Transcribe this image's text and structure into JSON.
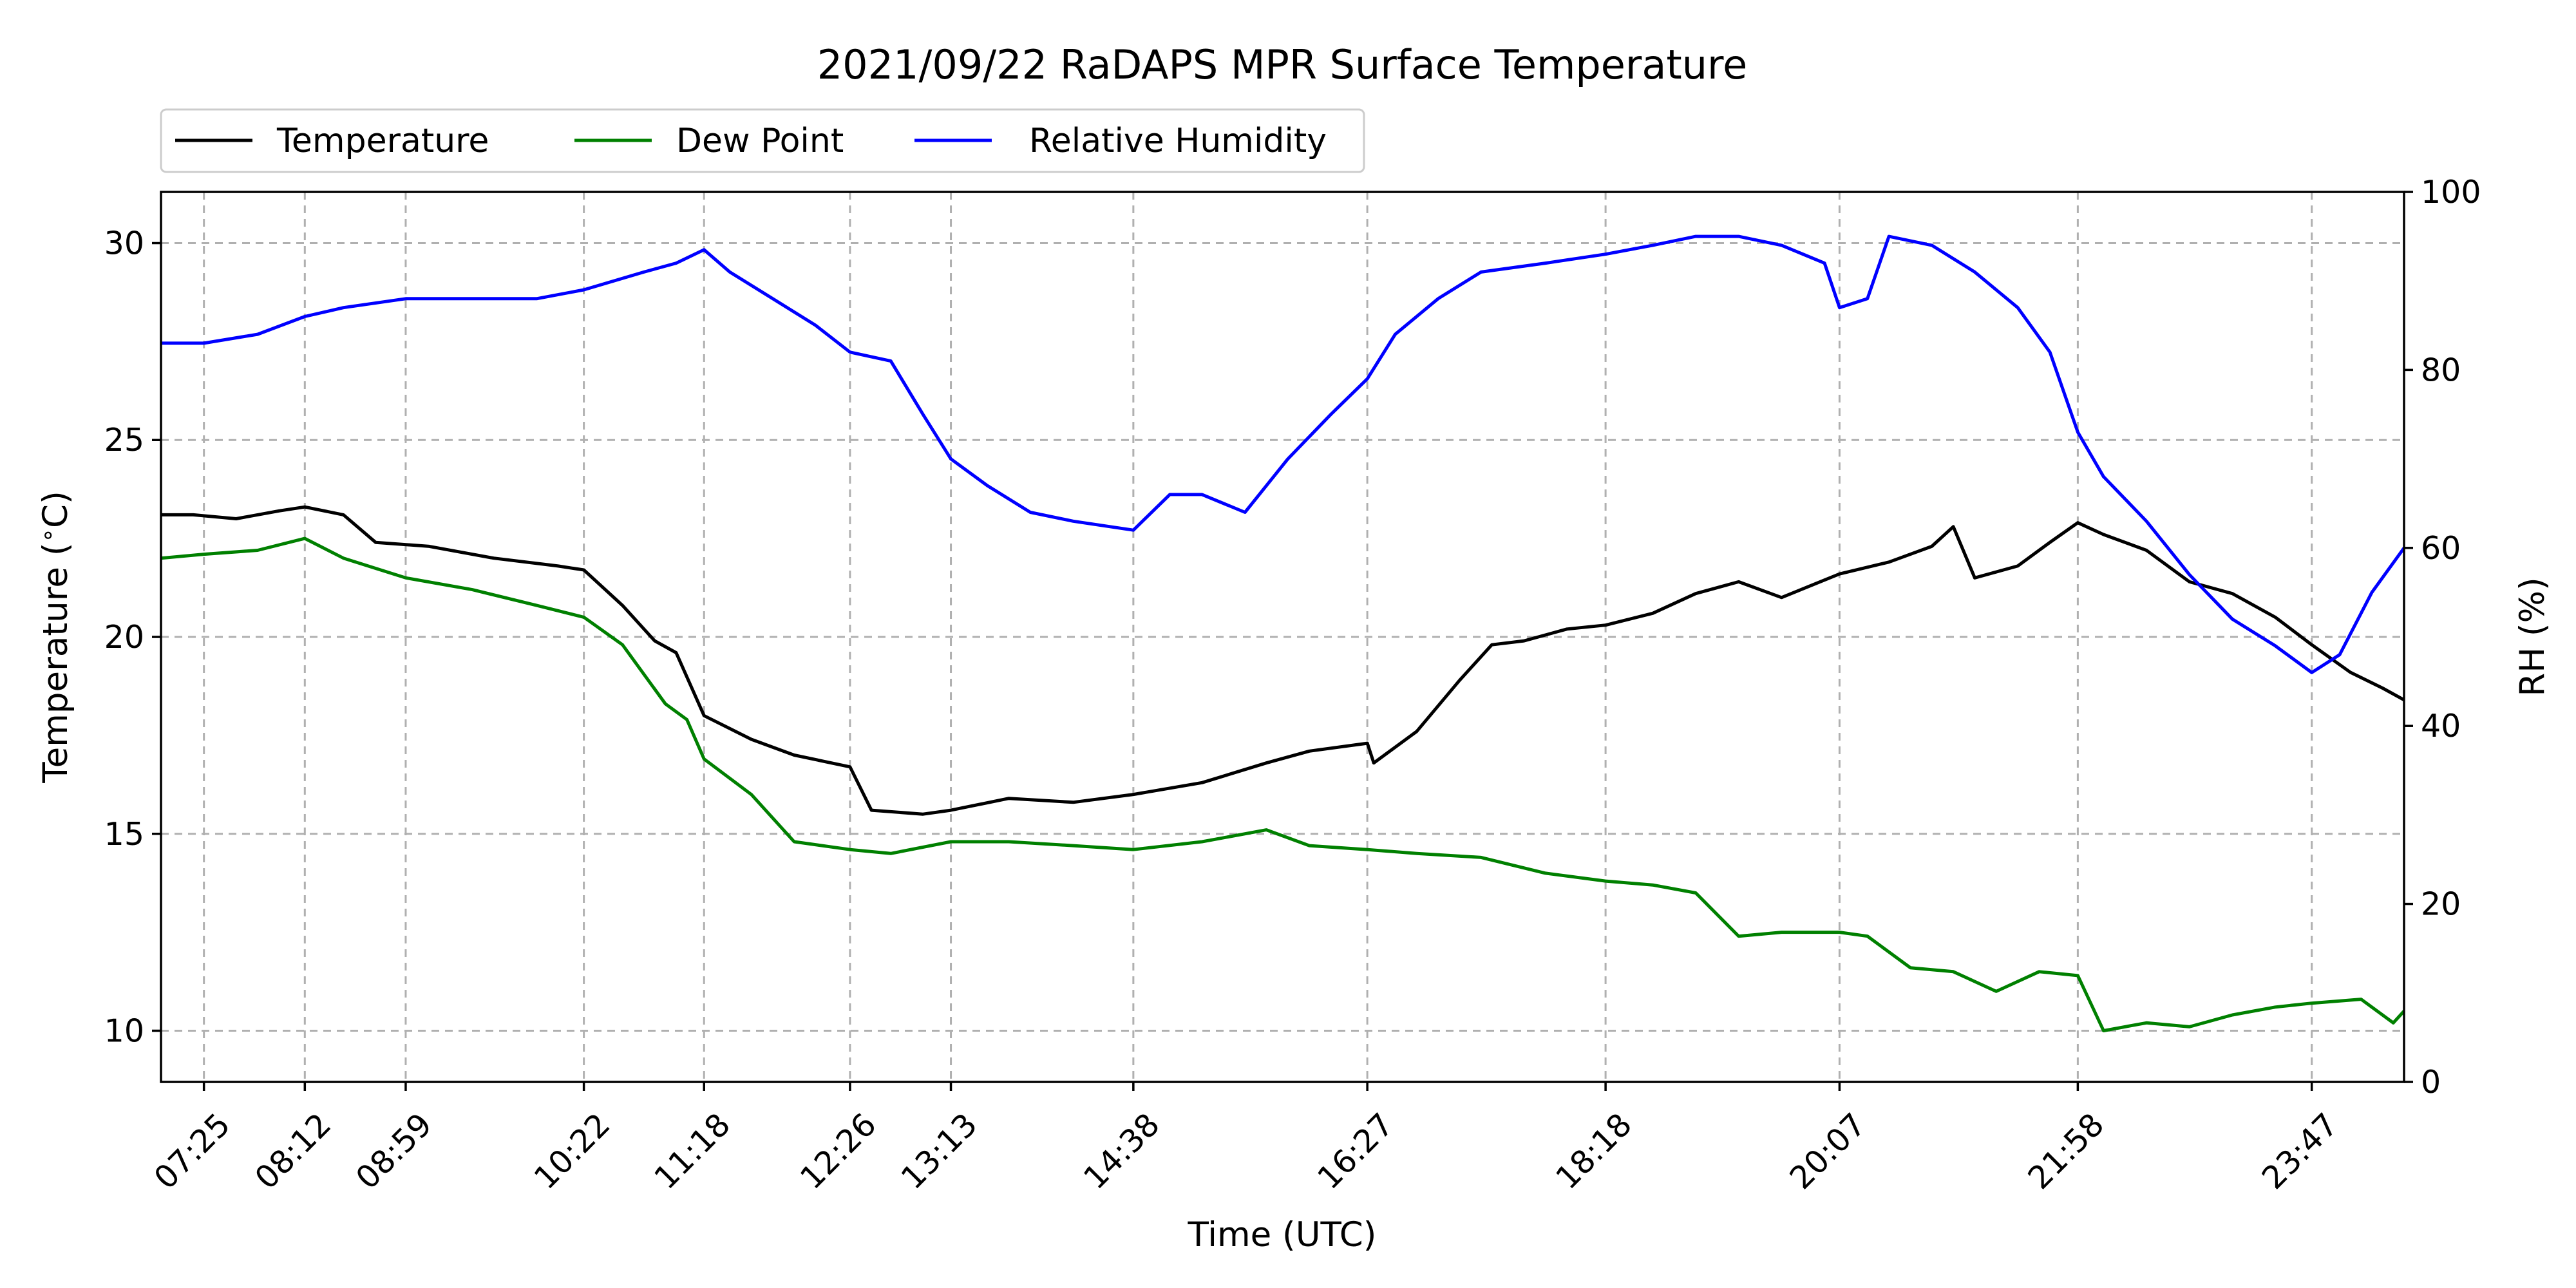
{
  "chart_data": {
    "type": "line",
    "title": "2021/09/22 RaDAPS MPR Surface Temperature",
    "xlabel": "Time (UTC)",
    "ylabel": "Temperature ($^\\circ$C)",
    "y2label": "RH (%)",
    "xlim": [
      "07:05",
      "24:30"
    ],
    "ylim": [
      8.7,
      31.3
    ],
    "y2lim": [
      0,
      100
    ],
    "grid": true,
    "legend_position": "top-left outside",
    "x_ticks": [
      "07:25",
      "08:12",
      "08:59",
      "10:22",
      "11:18",
      "12:26",
      "13:13",
      "14:38",
      "16:27",
      "18:18",
      "20:07",
      "21:58",
      "23:47"
    ],
    "y_ticks": [
      10,
      15,
      20,
      25,
      30
    ],
    "y2_ticks": [
      0,
      20,
      40,
      60,
      80,
      100
    ],
    "series": [
      {
        "name": "Temperature",
        "color": "#000000",
        "axis": "left",
        "points": [
          [
            "07:05",
            23.1
          ],
          [
            "07:20",
            23.1
          ],
          [
            "07:40",
            23.0
          ],
          [
            "08:00",
            23.2
          ],
          [
            "08:12",
            23.3
          ],
          [
            "08:30",
            23.1
          ],
          [
            "08:45",
            22.4
          ],
          [
            "09:10",
            22.3
          ],
          [
            "09:40",
            22.0
          ],
          [
            "10:10",
            21.8
          ],
          [
            "10:22",
            21.7
          ],
          [
            "10:40",
            20.8
          ],
          [
            "10:55",
            19.9
          ],
          [
            "11:05",
            19.6
          ],
          [
            "11:18",
            18.0
          ],
          [
            "11:40",
            17.4
          ],
          [
            "12:00",
            17.0
          ],
          [
            "12:26",
            16.7
          ],
          [
            "12:36",
            15.6
          ],
          [
            "13:00",
            15.5
          ],
          [
            "13:13",
            15.6
          ],
          [
            "13:40",
            15.9
          ],
          [
            "14:10",
            15.8
          ],
          [
            "14:38",
            16.0
          ],
          [
            "15:10",
            16.3
          ],
          [
            "15:40",
            16.8
          ],
          [
            "16:00",
            17.1
          ],
          [
            "16:27",
            17.3
          ],
          [
            "16:30",
            16.8
          ],
          [
            "16:50",
            17.6
          ],
          [
            "17:10",
            18.9
          ],
          [
            "17:25",
            19.8
          ],
          [
            "17:40",
            19.9
          ],
          [
            "18:00",
            20.2
          ],
          [
            "18:18",
            20.3
          ],
          [
            "18:40",
            20.6
          ],
          [
            "19:00",
            21.1
          ],
          [
            "19:20",
            21.4
          ],
          [
            "19:40",
            21.0
          ],
          [
            "20:07",
            21.6
          ],
          [
            "20:30",
            21.9
          ],
          [
            "20:50",
            22.3
          ],
          [
            "21:00",
            22.8
          ],
          [
            "21:10",
            21.5
          ],
          [
            "21:30",
            21.8
          ],
          [
            "21:45",
            22.4
          ],
          [
            "21:58",
            22.9
          ],
          [
            "22:10",
            22.6
          ],
          [
            "22:30",
            22.2
          ],
          [
            "22:50",
            21.4
          ],
          [
            "23:10",
            21.1
          ],
          [
            "23:30",
            20.5
          ],
          [
            "23:47",
            19.8
          ],
          [
            "24:05",
            19.1
          ],
          [
            "24:20",
            18.7
          ],
          [
            "24:30",
            18.4
          ]
        ]
      },
      {
        "name": "Dew Point",
        "color": "#008000",
        "axis": "left",
        "points": [
          [
            "07:05",
            22.0
          ],
          [
            "07:25",
            22.1
          ],
          [
            "07:50",
            22.2
          ],
          [
            "08:12",
            22.5
          ],
          [
            "08:30",
            22.0
          ],
          [
            "08:59",
            21.5
          ],
          [
            "09:30",
            21.2
          ],
          [
            "10:00",
            20.8
          ],
          [
            "10:22",
            20.5
          ],
          [
            "10:40",
            19.8
          ],
          [
            "11:00",
            18.3
          ],
          [
            "11:10",
            17.9
          ],
          [
            "11:18",
            16.9
          ],
          [
            "11:40",
            16.0
          ],
          [
            "12:00",
            14.8
          ],
          [
            "12:26",
            14.6
          ],
          [
            "12:45",
            14.5
          ],
          [
            "13:13",
            14.8
          ],
          [
            "13:40",
            14.8
          ],
          [
            "14:10",
            14.7
          ],
          [
            "14:38",
            14.6
          ],
          [
            "15:10",
            14.8
          ],
          [
            "15:40",
            15.1
          ],
          [
            "16:00",
            14.7
          ],
          [
            "16:27",
            14.6
          ],
          [
            "16:50",
            14.5
          ],
          [
            "17:20",
            14.4
          ],
          [
            "17:50",
            14.0
          ],
          [
            "18:18",
            13.8
          ],
          [
            "18:40",
            13.7
          ],
          [
            "19:00",
            13.5
          ],
          [
            "19:20",
            12.4
          ],
          [
            "19:40",
            12.5
          ],
          [
            "20:07",
            12.5
          ],
          [
            "20:20",
            12.4
          ],
          [
            "20:40",
            11.6
          ],
          [
            "21:00",
            11.5
          ],
          [
            "21:20",
            11.0
          ],
          [
            "21:40",
            11.5
          ],
          [
            "21:58",
            11.4
          ],
          [
            "22:10",
            10.0
          ],
          [
            "22:30",
            10.2
          ],
          [
            "22:50",
            10.1
          ],
          [
            "23:10",
            10.4
          ],
          [
            "23:30",
            10.6
          ],
          [
            "23:47",
            10.7
          ],
          [
            "24:10",
            10.8
          ],
          [
            "24:25",
            10.2
          ],
          [
            "24:30",
            10.5
          ]
        ]
      },
      {
        "name": "Relative Humidity",
        "color": "#0000ff",
        "axis": "right",
        "points": [
          [
            "07:05",
            83
          ],
          [
            "07:25",
            83
          ],
          [
            "07:50",
            84
          ],
          [
            "08:12",
            86
          ],
          [
            "08:30",
            87
          ],
          [
            "08:59",
            88
          ],
          [
            "09:30",
            88
          ],
          [
            "10:00",
            88
          ],
          [
            "10:22",
            89
          ],
          [
            "10:50",
            91
          ],
          [
            "11:05",
            92
          ],
          [
            "11:18",
            93.5
          ],
          [
            "11:30",
            91
          ],
          [
            "11:50",
            88
          ],
          [
            "12:10",
            85
          ],
          [
            "12:26",
            82
          ],
          [
            "12:45",
            81
          ],
          [
            "13:00",
            75
          ],
          [
            "13:13",
            70
          ],
          [
            "13:30",
            67
          ],
          [
            "13:50",
            64
          ],
          [
            "14:10",
            63
          ],
          [
            "14:38",
            62
          ],
          [
            "14:55",
            66
          ],
          [
            "15:10",
            66
          ],
          [
            "15:30",
            64
          ],
          [
            "15:50",
            70
          ],
          [
            "16:10",
            75
          ],
          [
            "16:27",
            79
          ],
          [
            "16:40",
            84
          ],
          [
            "17:00",
            88
          ],
          [
            "17:20",
            91
          ],
          [
            "17:50",
            92
          ],
          [
            "18:18",
            93
          ],
          [
            "18:40",
            94
          ],
          [
            "19:00",
            95
          ],
          [
            "19:20",
            95
          ],
          [
            "19:40",
            94
          ],
          [
            "20:00",
            92
          ],
          [
            "20:07",
            87
          ],
          [
            "20:20",
            88
          ],
          [
            "20:30",
            95
          ],
          [
            "20:50",
            94
          ],
          [
            "21:10",
            91
          ],
          [
            "21:30",
            87
          ],
          [
            "21:45",
            82
          ],
          [
            "21:58",
            73
          ],
          [
            "22:10",
            68
          ],
          [
            "22:30",
            63
          ],
          [
            "22:50",
            57
          ],
          [
            "23:10",
            52
          ],
          [
            "23:30",
            49
          ],
          [
            "23:47",
            46
          ],
          [
            "24:00",
            48
          ],
          [
            "24:15",
            55
          ],
          [
            "24:30",
            60
          ]
        ]
      }
    ]
  }
}
